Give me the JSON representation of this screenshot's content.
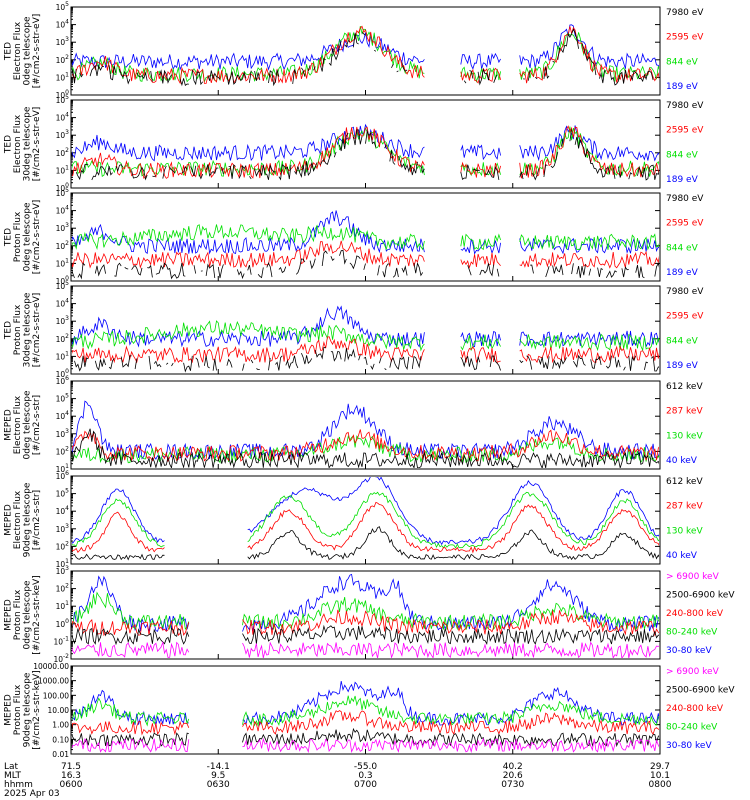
{
  "colors": {
    "black": "#000000",
    "red": "#ff0000",
    "green": "#00e000",
    "blue": "#0000ff",
    "magenta": "#ff00ff"
  },
  "chart_data": [
    {
      "type": "line",
      "ylabel": [
        "TED",
        "Electron Flux",
        "0deg telescope",
        "[#/cm2-s-str-eV]"
      ],
      "scale": "log",
      "yticks": [
        {
          "v": "10",
          "e": "0"
        },
        {
          "v": "10",
          "e": "1"
        },
        {
          "v": "10",
          "e": "2"
        },
        {
          "v": "10",
          "e": "3"
        },
        {
          "v": "10",
          "e": "4"
        },
        {
          "v": "10",
          "e": "5"
        }
      ],
      "series": [
        {
          "name": "7980 eV",
          "color": "black"
        },
        {
          "name": "2595 eV",
          "color": "red"
        },
        {
          "name": "844 eV",
          "color": "green"
        },
        {
          "name": "189 eV",
          "color": "blue"
        }
      ]
    },
    {
      "type": "line",
      "ylabel": [
        "TED",
        "Electron Flux",
        "30deg telescope",
        "[#/cm2-s-str-eV]"
      ],
      "scale": "log",
      "yticks": [
        {
          "v": "10",
          "e": "0"
        },
        {
          "v": "10",
          "e": "1"
        },
        {
          "v": "10",
          "e": "2"
        },
        {
          "v": "10",
          "e": "3"
        },
        {
          "v": "10",
          "e": "4"
        },
        {
          "v": "10",
          "e": "5"
        }
      ],
      "series": [
        {
          "name": "7980 eV",
          "color": "black"
        },
        {
          "name": "2595 eV",
          "color": "red"
        },
        {
          "name": "844 eV",
          "color": "green"
        },
        {
          "name": "189 eV",
          "color": "blue"
        }
      ]
    },
    {
      "type": "line",
      "ylabel": [
        "TED",
        "Proton Flux",
        "0deg telescope",
        "[#/cm2-s-str-eV]"
      ],
      "scale": "log",
      "yticks": [
        {
          "v": "10",
          "e": "0"
        },
        {
          "v": "10",
          "e": "1"
        },
        {
          "v": "10",
          "e": "2"
        },
        {
          "v": "10",
          "e": "3"
        },
        {
          "v": "10",
          "e": "4"
        },
        {
          "v": "10",
          "e": "5"
        }
      ],
      "series": [
        {
          "name": "7980 eV",
          "color": "black"
        },
        {
          "name": "2595 eV",
          "color": "red"
        },
        {
          "name": "844 eV",
          "color": "green"
        },
        {
          "name": "189 eV",
          "color": "blue"
        }
      ]
    },
    {
      "type": "line",
      "ylabel": [
        "TED",
        "Proton Flux",
        "30deg telescope",
        "[#/cm2-s-str-eV]"
      ],
      "scale": "log",
      "yticks": [
        {
          "v": "10",
          "e": "0"
        },
        {
          "v": "10",
          "e": "1"
        },
        {
          "v": "10",
          "e": "2"
        },
        {
          "v": "10",
          "e": "3"
        },
        {
          "v": "10",
          "e": "4"
        },
        {
          "v": "10",
          "e": "5"
        }
      ],
      "series": [
        {
          "name": "7980 eV",
          "color": "black"
        },
        {
          "name": "2595 eV",
          "color": "red"
        },
        {
          "name": "844 eV",
          "color": "green"
        },
        {
          "name": "189 eV",
          "color": "blue"
        }
      ]
    },
    {
      "type": "line",
      "ylabel": [
        "MEPED",
        "Electron Flux",
        "0deg telescope",
        "[#/cm2-s-str]"
      ],
      "scale": "log",
      "yticks": [
        {
          "v": "10",
          "e": "1"
        },
        {
          "v": "10",
          "e": "2"
        },
        {
          "v": "10",
          "e": "3"
        },
        {
          "v": "10",
          "e": "4"
        },
        {
          "v": "10",
          "e": "5"
        },
        {
          "v": "10",
          "e": "6"
        }
      ],
      "series": [
        {
          "name": "612 keV",
          "color": "black"
        },
        {
          "name": "287 keV",
          "color": "red"
        },
        {
          "name": "130 keV",
          "color": "green"
        },
        {
          "name": "40 keV",
          "color": "blue"
        }
      ]
    },
    {
      "type": "line",
      "ylabel": [
        "MEPED",
        "Electron Flux",
        "90deg telescope",
        "[#/cm2-s-str]"
      ],
      "scale": "log",
      "yticks": [
        {
          "v": "10",
          "e": "1"
        },
        {
          "v": "10",
          "e": "2"
        },
        {
          "v": "10",
          "e": "3"
        },
        {
          "v": "10",
          "e": "4"
        },
        {
          "v": "10",
          "e": "5"
        },
        {
          "v": "10",
          "e": "6"
        }
      ],
      "series": [
        {
          "name": "612 keV",
          "color": "black"
        },
        {
          "name": "287 keV",
          "color": "red"
        },
        {
          "name": "130 keV",
          "color": "green"
        },
        {
          "name": "40 keV",
          "color": "blue"
        }
      ]
    },
    {
      "type": "line",
      "ylabel": [
        "MEPED",
        "Proton Flux",
        "0deg telescope",
        "[#/cm2-s-str-keV]"
      ],
      "scale": "log",
      "yticks": [
        {
          "v": "10",
          "e": "-2"
        },
        {
          "v": "10",
          "e": "-1"
        },
        {
          "v": "10",
          "e": "0"
        },
        {
          "v": "10",
          "e": "1"
        },
        {
          "v": "10",
          "e": "2"
        },
        {
          "v": "10",
          "e": "3"
        }
      ],
      "series": [
        {
          "name": "> 6900 keV",
          "color": "magenta"
        },
        {
          "name": "2500-6900 keV",
          "color": "black"
        },
        {
          "name": "240-800 keV",
          "color": "red"
        },
        {
          "name": "80-240 keV",
          "color": "green"
        },
        {
          "name": "30-80 keV",
          "color": "blue"
        }
      ]
    },
    {
      "type": "line",
      "ylabel": [
        "MEPED",
        "Proton Flux",
        "90deg telescope",
        "[#/cm2-s-str-keV]"
      ],
      "scale": "log",
      "yticks": [
        {
          "v": "0.01"
        },
        {
          "v": "0.10"
        },
        {
          "v": "1.00"
        },
        {
          "v": "10.00"
        },
        {
          "v": "100.00"
        },
        {
          "v": "1000.00"
        },
        {
          "v": "10000.00"
        }
      ],
      "series": [
        {
          "name": "> 6900 keV",
          "color": "magenta"
        },
        {
          "name": "2500-6900 keV",
          "color": "black"
        },
        {
          "name": "240-800 keV",
          "color": "red"
        },
        {
          "name": "80-240 keV",
          "color": "green"
        },
        {
          "name": "30-80 keV",
          "color": "blue"
        }
      ]
    }
  ],
  "footer": {
    "row_labels": [
      "Lat",
      "MLT",
      "hhmm",
      "2025 Apr 03"
    ],
    "columns": [
      {
        "lat": "71.5",
        "mlt": "16.3",
        "hhmm": "0600"
      },
      {
        "lat": "-14.1",
        "mlt": "9.5",
        "hhmm": "0630"
      },
      {
        "lat": "-55.0",
        "mlt": "0.3",
        "hhmm": "0700"
      },
      {
        "lat": "40.2",
        "mlt": "20.6",
        "hhmm": "0730"
      },
      {
        "lat": "29.7",
        "mlt": "10.1",
        "hhmm": "0800"
      }
    ]
  }
}
